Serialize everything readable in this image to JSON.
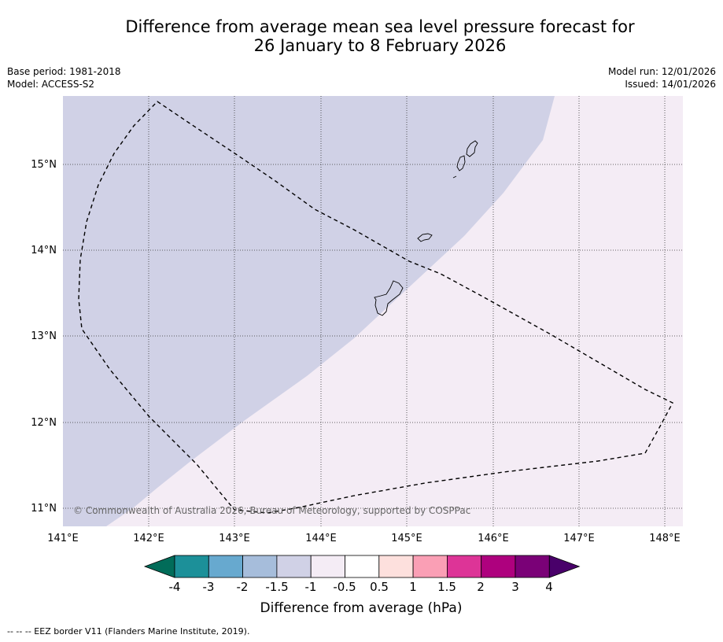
{
  "title_line1": "Difference from average mean sea level pressure forecast for",
  "title_line2": "26 January to 8 February 2026",
  "meta": {
    "base_period": "Base period: 1981-2018",
    "model": "Model: ACCESS-S2",
    "model_run": "Model run: 12/01/2026",
    "issued": "Issued: 14/01/2026"
  },
  "map": {
    "lon_labels": [
      "141°E",
      "142°E",
      "143°E",
      "144°E",
      "145°E",
      "146°E",
      "147°E",
      "148°E"
    ],
    "lat_labels": [
      "15°N",
      "14°N",
      "13°N",
      "12°N",
      "11°N"
    ],
    "copyright": "© Commonwealth of Australia 2026, Bureau of Meteorology, supported by COSPPac",
    "fill_colors": {
      "negative_-1.5_-1": "#d0d1e6",
      "neutral_-1_-0.5": "#f4ecf5"
    }
  },
  "colorbar": {
    "tick_labels": [
      "-4",
      "-3",
      "-2",
      "-1.5",
      "-1",
      "-0.5",
      "0.5",
      "1",
      "1.5",
      "2",
      "3",
      "4"
    ],
    "colors": [
      "#016c59",
      "#1c9099",
      "#67a9cf",
      "#a6bddb",
      "#d0d1e6",
      "#f4ecf5",
      "#ffffff",
      "#fde0dd",
      "#fa9fb5",
      "#dd3497",
      "#ae017e",
      "#7a0177",
      "#49006a"
    ],
    "title": "Difference from average (hPa)"
  },
  "footnote": "--  --  -- EEZ border V11 (Flanders Marine Institute, 2019)."
}
